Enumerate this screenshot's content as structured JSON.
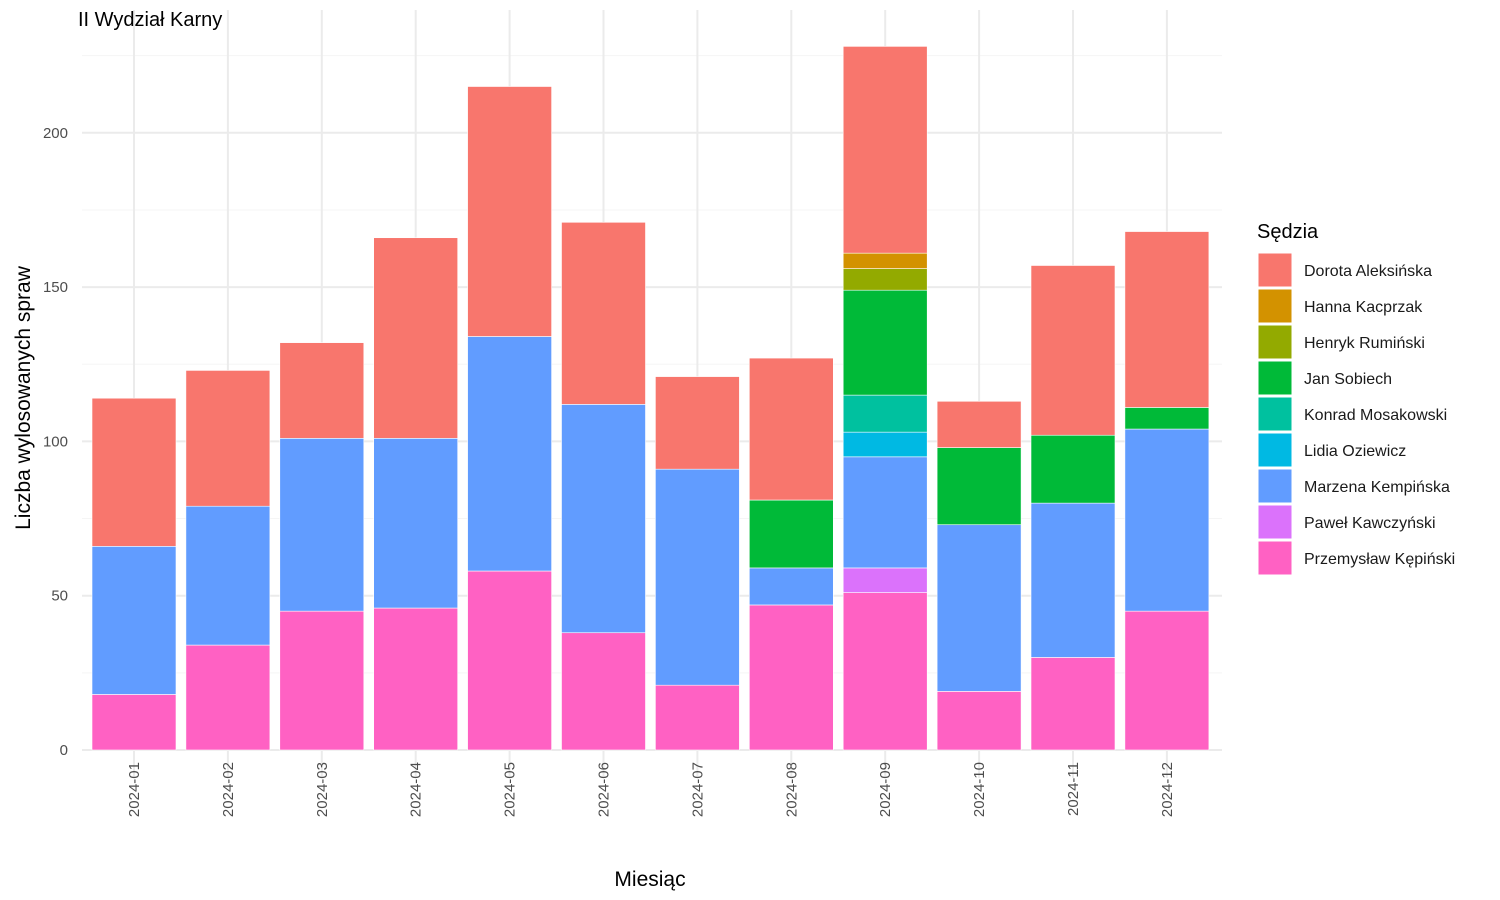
{
  "chart_data": {
    "type": "bar",
    "stacked": true,
    "title": "II Wydział Karny",
    "xlabel": "Miesiąc",
    "ylabel": "Liczba wylosowanych spraw",
    "ylim": [
      0,
      230
    ],
    "yticks": [
      0,
      50,
      100,
      150,
      200
    ],
    "grid": true,
    "legend_title": "Sędzia",
    "legend_position": "right",
    "categories": [
      "2024-01",
      "2024-02",
      "2024-03",
      "2024-04",
      "2024-05",
      "2024-06",
      "2024-07",
      "2024-08",
      "2024-09",
      "2024-10",
      "2024-11",
      "2024-12"
    ],
    "series": [
      {
        "name": "Dorota Aleksińska",
        "color": "#F8766D",
        "values": [
          48,
          44,
          31,
          65,
          81,
          59,
          30,
          46,
          67,
          15,
          55,
          57
        ]
      },
      {
        "name": "Hanna Kacprzak",
        "color": "#D39200",
        "values": [
          0,
          0,
          0,
          0,
          0,
          0,
          0,
          0,
          5,
          0,
          0,
          0
        ]
      },
      {
        "name": "Henryk Rumiński",
        "color": "#93AA00",
        "values": [
          0,
          0,
          0,
          0,
          0,
          0,
          0,
          0,
          7,
          0,
          0,
          0
        ]
      },
      {
        "name": "Jan Sobiech",
        "color": "#00BA38",
        "values": [
          0,
          0,
          0,
          0,
          0,
          0,
          0,
          22,
          34,
          25,
          22,
          7
        ]
      },
      {
        "name": "Konrad Mosakowski",
        "color": "#00C19F",
        "values": [
          0,
          0,
          0,
          0,
          0,
          0,
          0,
          0,
          12,
          0,
          0,
          0
        ]
      },
      {
        "name": "Lidia Oziewicz",
        "color": "#00B9E3",
        "values": [
          0,
          0,
          0,
          0,
          0,
          0,
          0,
          0,
          8,
          0,
          0,
          0
        ]
      },
      {
        "name": "Marzena Kempińska",
        "color": "#619CFF",
        "values": [
          48,
          45,
          56,
          55,
          76,
          74,
          70,
          12,
          36,
          54,
          50,
          59
        ]
      },
      {
        "name": "Paweł Kawczyński",
        "color": "#DB72FB",
        "values": [
          0,
          0,
          0,
          0,
          0,
          0,
          0,
          0,
          8,
          0,
          0,
          0
        ]
      },
      {
        "name": "Przemysław Kępiński",
        "color": "#FF61C3",
        "values": [
          18,
          34,
          45,
          46,
          58,
          38,
          21,
          47,
          51,
          19,
          30,
          45
        ]
      }
    ]
  }
}
